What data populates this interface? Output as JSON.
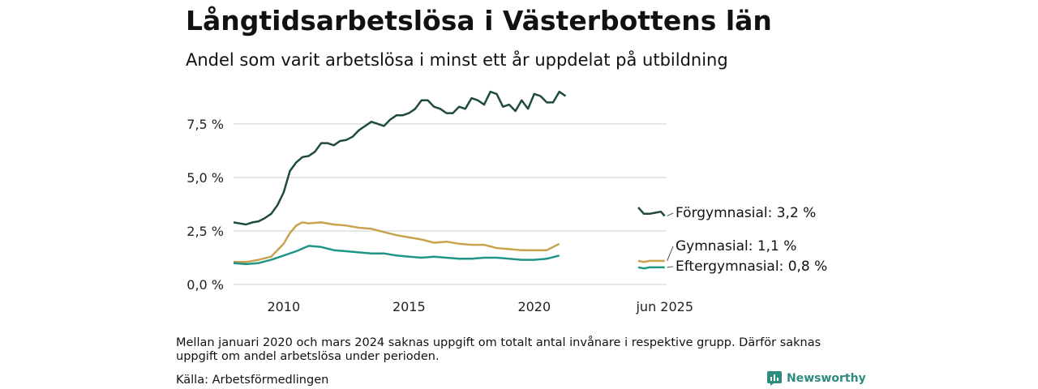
{
  "title": "Långtidsarbetslösa i Västerbottens län",
  "subtitle": "Andel som varit arbetslösa i minst ett år uppdelat på utbildning",
  "note": "Mellan januari 2020 och mars 2024 saknas uppgift om totalt antal invånare i respektive grupp. Därför saknas uppgift om andel arbetslösa under perioden.",
  "source": "Källa: Arbetsförmedlingen",
  "brand": "Newsworthy",
  "colors": {
    "accent": "#2f8a80"
  },
  "chart_data": {
    "type": "line",
    "ylim": [
      0,
      9.5
    ],
    "yticks": [
      0,
      2.5,
      5,
      7.5
    ],
    "yticklabels": [
      "0,0 %",
      "2,5 %",
      "5,0 %",
      "7,5 %"
    ],
    "xticklabels": [
      "2010",
      "2015",
      "2020",
      "jun 2025"
    ],
    "grid": true,
    "series": [
      {
        "name": "Förgymnasial",
        "end_label": "Förgymnasial: 3,2 %",
        "color": "#1e4a3f",
        "points": [
          [
            "2008-01",
            2.9
          ],
          [
            "2008-04",
            2.85
          ],
          [
            "2008-07",
            2.8
          ],
          [
            "2008-10",
            2.9
          ],
          [
            "2009-01",
            2.95
          ],
          [
            "2009-04",
            3.1
          ],
          [
            "2009-07",
            3.3
          ],
          [
            "2009-10",
            3.7
          ],
          [
            "2010-01",
            4.3
          ],
          [
            "2010-04",
            5.3
          ],
          [
            "2010-07",
            5.7
          ],
          [
            "2010-10",
            5.95
          ],
          [
            "2011-01",
            6.0
          ],
          [
            "2011-04",
            6.2
          ],
          [
            "2011-07",
            6.6
          ],
          [
            "2011-10",
            6.6
          ],
          [
            "2012-01",
            6.5
          ],
          [
            "2012-04",
            6.7
          ],
          [
            "2012-07",
            6.75
          ],
          [
            "2012-10",
            6.9
          ],
          [
            "2013-01",
            7.2
          ],
          [
            "2013-04",
            7.4
          ],
          [
            "2013-07",
            7.6
          ],
          [
            "2013-10",
            7.5
          ],
          [
            "2014-01",
            7.4
          ],
          [
            "2014-04",
            7.7
          ],
          [
            "2014-07",
            7.9
          ],
          [
            "2014-10",
            7.9
          ],
          [
            "2015-01",
            8.0
          ],
          [
            "2015-04",
            8.2
          ],
          [
            "2015-07",
            8.6
          ],
          [
            "2015-10",
            8.6
          ],
          [
            "2016-01",
            8.3
          ],
          [
            "2016-04",
            8.2
          ],
          [
            "2016-07",
            8.0
          ],
          [
            "2016-10",
            8.0
          ],
          [
            "2017-01",
            8.3
          ],
          [
            "2017-04",
            8.2
          ],
          [
            "2017-07",
            8.7
          ],
          [
            "2017-10",
            8.6
          ],
          [
            "2018-01",
            8.4
          ],
          [
            "2018-04",
            9.0
          ],
          [
            "2018-07",
            8.9
          ],
          [
            "2018-10",
            8.3
          ],
          [
            "2019-01",
            8.4
          ],
          [
            "2019-04",
            8.1
          ],
          [
            "2019-07",
            8.6
          ],
          [
            "2019-10",
            8.2
          ],
          [
            "2020-01",
            8.9
          ],
          [
            "2020-04",
            8.8
          ],
          [
            "2020-07",
            8.5
          ],
          [
            "2020-10",
            8.5
          ],
          [
            "2021-01",
            9.0
          ],
          [
            "2021-04",
            8.8
          ],
          null,
          [
            "2024-04",
            3.6
          ],
          [
            "2024-07",
            3.3
          ],
          [
            "2024-10",
            3.3
          ],
          [
            "2025-01",
            3.35
          ],
          [
            "2025-04",
            3.4
          ],
          [
            "2025-06",
            3.2
          ]
        ]
      },
      {
        "name": "Gymnasial",
        "end_label": "Gymnasial: 1,1 %",
        "color": "#c9a24e",
        "points": [
          [
            "2008-01",
            1.05
          ],
          [
            "2008-07",
            1.05
          ],
          [
            "2009-01",
            1.15
          ],
          [
            "2009-07",
            1.3
          ],
          [
            "2010-01",
            1.9
          ],
          [
            "2010-04",
            2.4
          ],
          [
            "2010-07",
            2.75
          ],
          [
            "2010-10",
            2.9
          ],
          [
            "2011-01",
            2.85
          ],
          [
            "2011-07",
            2.9
          ],
          [
            "2012-01",
            2.8
          ],
          [
            "2012-07",
            2.75
          ],
          [
            "2013-01",
            2.65
          ],
          [
            "2013-07",
            2.6
          ],
          [
            "2014-01",
            2.45
          ],
          [
            "2014-07",
            2.3
          ],
          [
            "2015-01",
            2.2
          ],
          [
            "2015-07",
            2.1
          ],
          [
            "2016-01",
            1.95
          ],
          [
            "2016-07",
            2.0
          ],
          [
            "2017-01",
            1.9
          ],
          [
            "2017-07",
            1.85
          ],
          [
            "2018-01",
            1.85
          ],
          [
            "2018-07",
            1.7
          ],
          [
            "2019-01",
            1.65
          ],
          [
            "2019-07",
            1.6
          ],
          [
            "2020-01",
            1.6
          ],
          [
            "2020-07",
            1.6
          ],
          [
            "2021-01",
            1.9
          ],
          null,
          [
            "2024-04",
            1.1
          ],
          [
            "2024-07",
            1.05
          ],
          [
            "2024-10",
            1.1
          ],
          [
            "2025-01",
            1.1
          ],
          [
            "2025-06",
            1.1
          ]
        ]
      },
      {
        "name": "Eftergymnasial",
        "end_label": "Eftergymnasial: 0,8 %",
        "color": "#1f9487",
        "points": [
          [
            "2008-01",
            1.0
          ],
          [
            "2008-07",
            0.95
          ],
          [
            "2009-01",
            1.0
          ],
          [
            "2009-07",
            1.15
          ],
          [
            "2010-01",
            1.35
          ],
          [
            "2010-07",
            1.55
          ],
          [
            "2011-01",
            1.8
          ],
          [
            "2011-07",
            1.75
          ],
          [
            "2012-01",
            1.6
          ],
          [
            "2012-07",
            1.55
          ],
          [
            "2013-01",
            1.5
          ],
          [
            "2013-07",
            1.45
          ],
          [
            "2014-01",
            1.45
          ],
          [
            "2014-07",
            1.35
          ],
          [
            "2015-01",
            1.3
          ],
          [
            "2015-07",
            1.25
          ],
          [
            "2016-01",
            1.3
          ],
          [
            "2016-07",
            1.25
          ],
          [
            "2017-01",
            1.2
          ],
          [
            "2017-07",
            1.2
          ],
          [
            "2018-01",
            1.25
          ],
          [
            "2018-07",
            1.25
          ],
          [
            "2019-01",
            1.2
          ],
          [
            "2019-07",
            1.15
          ],
          [
            "2020-01",
            1.15
          ],
          [
            "2020-07",
            1.2
          ],
          [
            "2021-01",
            1.35
          ],
          null,
          [
            "2024-04",
            0.8
          ],
          [
            "2024-07",
            0.75
          ],
          [
            "2024-10",
            0.8
          ],
          [
            "2025-01",
            0.8
          ],
          [
            "2025-06",
            0.8
          ]
        ]
      }
    ]
  }
}
